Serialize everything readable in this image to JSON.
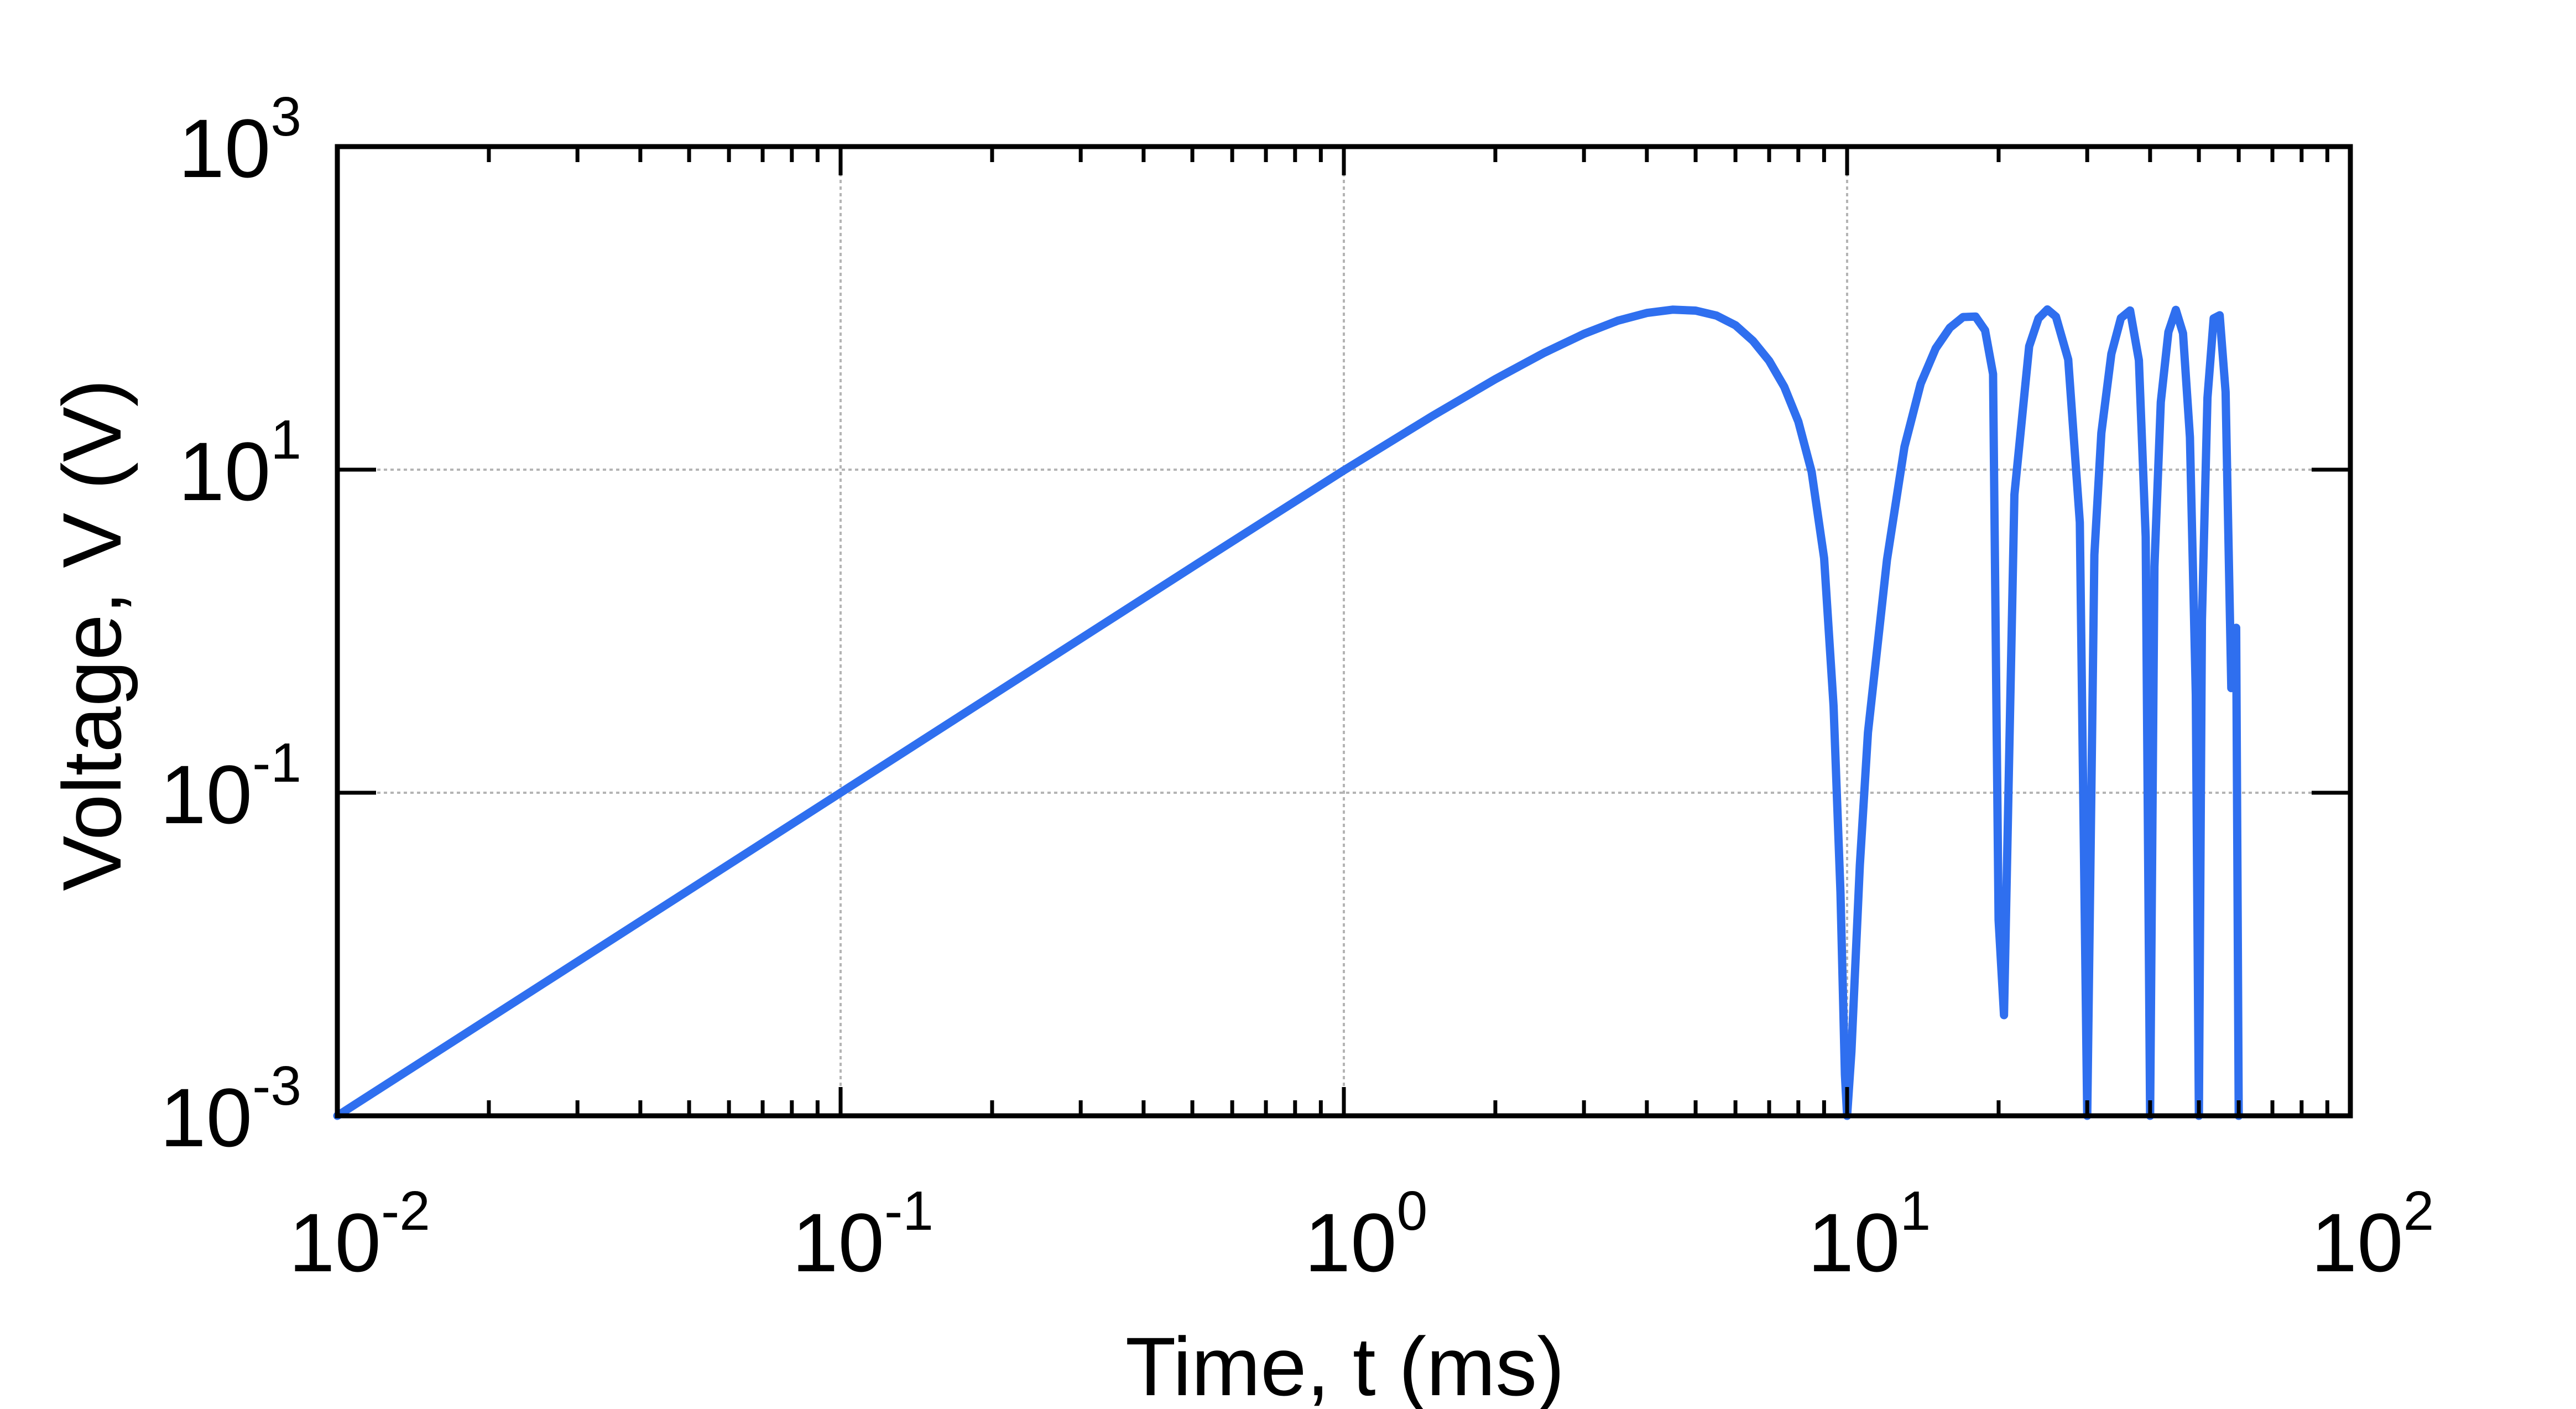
{
  "chart_data": {
    "type": "line",
    "xlabel": "Time, t (ms)",
    "ylabel": "Voltage, V (V)",
    "x_scale": "log",
    "y_scale": "log",
    "xlim": [
      0.01,
      100
    ],
    "ylim": [
      0.001,
      1000
    ],
    "grid": true,
    "x_ticks": [
      {
        "value": 0.01,
        "base": "10",
        "exp": "-2"
      },
      {
        "value": 0.1,
        "base": "10",
        "exp": "-1"
      },
      {
        "value": 1,
        "base": "10",
        "exp": "0"
      },
      {
        "value": 10,
        "base": "10",
        "exp": "1"
      },
      {
        "value": 100,
        "base": "10",
        "exp": "2"
      }
    ],
    "y_ticks": [
      {
        "value": 0.001,
        "base": "10",
        "exp": "-3"
      },
      {
        "value": 0.1,
        "base": "10",
        "exp": "-1"
      },
      {
        "value": 10,
        "base": "10",
        "exp": "1"
      },
      {
        "value": 1000,
        "base": "10",
        "exp": "3"
      }
    ],
    "series": [
      {
        "color": "#2f6fef",
        "x": [
          0.01,
          0.02,
          0.05,
          0.1,
          0.2,
          0.5,
          1.0,
          1.5,
          2.0,
          2.5,
          3.0,
          3.5,
          4.0,
          4.5,
          5.0,
          5.5,
          6.0,
          6.5,
          7.0,
          7.5,
          8.0,
          8.5,
          9.0,
          9.4,
          9.7,
          9.9,
          10.0,
          10.2,
          10.6,
          11.0,
          12.0,
          13.0,
          14.0,
          15.0,
          16.0,
          17.0,
          18.0,
          18.8,
          19.5,
          20.0,
          20.5,
          21.5,
          23.0,
          24.0,
          25.0,
          26.0,
          27.5,
          29.0,
          30.0,
          31.0,
          32.0,
          33.5,
          35.0,
          36.5,
          38.0,
          39.2,
          40.0,
          40.8,
          42.0,
          43.5,
          45.0,
          46.5,
          48.0,
          49.3,
          50.0,
          50.7,
          52.0,
          53.5,
          55.0,
          56.5,
          58.0,
          59.3,
          60.0
        ],
        "y": [
          0.001,
          0.004,
          0.025,
          0.1,
          0.4,
          2.5,
          9.897,
          21.51,
          36.33,
          52.89,
          69.33,
          83.53,
          93.38,
          97.79,
          96.49,
          89.96,
          78.4,
          62.69,
          47.21,
          32.59,
          19.84,
          9.709,
          2.835,
          0.3446,
          0.0241,
          0.0018,
          0.001,
          0.0025,
          0.0355,
          0.2359,
          2.771,
          13.84,
          34.03,
          56.32,
          75.54,
          88.05,
          88.63,
          72.86,
          39.11,
          0.0163,
          0.0042,
          7.004,
          58.05,
          86.31,
          98.11,
          88.59,
          48.05,
          4.713,
          0.001,
          2.971,
          16.84,
          52.06,
          86.87,
          96.63,
          47.59,
          3.837,
          0.001,
          2.504,
          26.17,
          71.15,
          97.52,
          69.77,
          15.86,
          0.4045,
          0.001,
          1.168,
          27.89,
          86.43,
          90.36,
          30.29,
          0.4445,
          1.049,
          0.001
        ]
      }
    ]
  }
}
